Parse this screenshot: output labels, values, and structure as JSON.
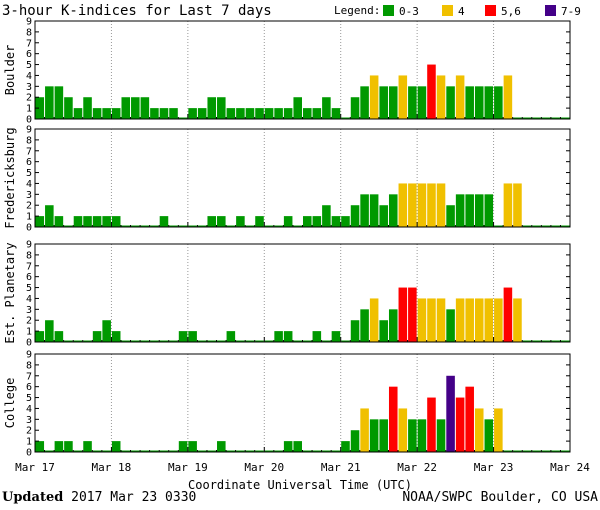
{
  "chart_data": {
    "type": "bar",
    "title": "3-hour K-indices for Last 7 days",
    "xlabel": "Coordinate Universal Time (UTC)",
    "x_ticks": [
      "Mar 17",
      "Mar 18",
      "Mar 19",
      "Mar 20",
      "Mar 21",
      "Mar 22",
      "Mar 23",
      "Mar 24"
    ],
    "y_ticks": [
      "0",
      "1",
      "2",
      "3",
      "4",
      "5",
      "6",
      "7",
      "8",
      "9"
    ],
    "ylim": [
      0,
      9
    ],
    "bins_per_day": 8,
    "legend": {
      "title": "Legend:",
      "placement": "top-right",
      "items": [
        {
          "label": "0-3",
          "color": "#009900"
        },
        {
          "label": "4",
          "color": "#f0c000"
        },
        {
          "label": "5,6",
          "color": "#ff0000"
        },
        {
          "label": "7-9",
          "color": "#440088"
        }
      ]
    },
    "series": [
      {
        "name": "Boulder",
        "values": [
          2,
          3,
          3,
          2,
          1,
          2,
          1,
          1,
          1,
          2,
          2,
          2,
          1,
          1,
          1,
          0,
          1,
          1,
          2,
          2,
          1,
          1,
          1,
          1,
          1,
          1,
          1,
          2,
          1,
          1,
          2,
          1,
          0,
          2,
          3,
          4,
          3,
          3,
          4,
          3,
          3,
          5,
          4,
          3,
          4,
          3,
          3,
          3,
          3,
          4,
          0,
          0,
          0,
          0,
          0,
          0
        ]
      },
      {
        "name": "Fredericksburg",
        "values": [
          1,
          2,
          1,
          0,
          1,
          1,
          1,
          1,
          1,
          0,
          0,
          0,
          0,
          1,
          0,
          0,
          0,
          0,
          1,
          1,
          0,
          1,
          0,
          1,
          0,
          0,
          1,
          0,
          1,
          1,
          2,
          1,
          1,
          2,
          3,
          3,
          2,
          3,
          4,
          4,
          4,
          4,
          4,
          2,
          3,
          3,
          3,
          3,
          0,
          4,
          4,
          0,
          0,
          0,
          0,
          0
        ]
      },
      {
        "name": "Est. Planetary",
        "values": [
          1,
          2,
          1,
          0,
          0,
          0,
          1,
          2,
          1,
          0,
          0,
          0,
          0,
          0,
          0,
          1,
          1,
          0,
          0,
          0,
          1,
          0,
          0,
          0,
          0,
          1,
          1,
          0,
          0,
          1,
          0,
          1,
          0,
          2,
          3,
          4,
          2,
          3,
          5,
          5,
          4,
          4,
          4,
          3,
          4,
          4,
          4,
          4,
          4,
          5,
          4,
          0,
          0,
          0,
          0,
          0
        ]
      },
      {
        "name": "College",
        "values": [
          1,
          0,
          1,
          1,
          0,
          1,
          0,
          0,
          1,
          0,
          0,
          0,
          0,
          0,
          0,
          1,
          1,
          0,
          0,
          1,
          0,
          0,
          0,
          0,
          0,
          0,
          1,
          1,
          0,
          0,
          0,
          0,
          1,
          2,
          4,
          3,
          3,
          6,
          4,
          3,
          3,
          5,
          3,
          7,
          5,
          6,
          4,
          3,
          4,
          0,
          0,
          0,
          0,
          0,
          0,
          0
        ]
      }
    ]
  },
  "footer": {
    "updated_label": "Updated",
    "updated_value": "2017 Mar 23 0330",
    "credit": "NOAA/SWPC Boulder, CO USA"
  }
}
